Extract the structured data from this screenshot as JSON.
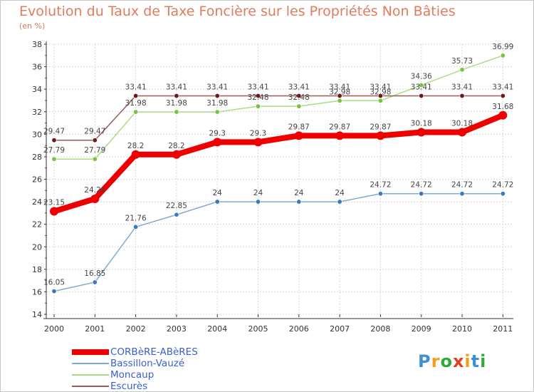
{
  "title": "Evolution du Taux de Taxe Foncière sur les Propriétés Non Bâties",
  "unit_label": "(en %)",
  "logo": {
    "text": "Proxiti",
    "letters": [
      {
        "ch": "P",
        "color": "#3f8fd8"
      },
      {
        "ch": "r",
        "color": "#f0a020"
      },
      {
        "ch": "o",
        "color": "#2faa3a"
      },
      {
        "ch": "x",
        "color": "#e04020"
      },
      {
        "ch": "i",
        "color": "#f0a020"
      },
      {
        "ch": "t",
        "color": "#3f8fd8"
      },
      {
        "ch": "i",
        "color": "#2faa3a"
      }
    ]
  },
  "chart_data": {
    "type": "line",
    "title": "Evolution du Taux de Taxe Foncière sur les Propriétés Non Bâties",
    "ylabel": "(en %)",
    "xlabel": "",
    "categories": [
      "2000",
      "2001",
      "2002",
      "2003",
      "2004",
      "2005",
      "2006",
      "2007",
      "2008",
      "2009",
      "2010",
      "2011"
    ],
    "ylim": [
      14,
      38
    ],
    "yticks": [
      14,
      16,
      18,
      20,
      22,
      24,
      26,
      28,
      30,
      32,
      34,
      36,
      38
    ],
    "grid": true,
    "legend_position": "bottom-left",
    "series": [
      {
        "name": "CORBèRE-ABèRES",
        "color": "#ee0000",
        "marker_color": "#ee0000",
        "weight": "thick",
        "values": [
          23.15,
          24.26,
          28.2,
          28.2,
          29.3,
          29.3,
          29.87,
          29.87,
          29.87,
          30.18,
          30.18,
          31.68
        ],
        "labels": [
          "23.15",
          "24.26",
          "28.2",
          "28.2",
          "29.3",
          "29.3",
          "29.87",
          "29.87",
          "29.87",
          "30.18",
          "30.18",
          "31.68"
        ]
      },
      {
        "name": "Bassillon-Vauzé",
        "color": "#7eaad4",
        "marker_color": "#3a78c0",
        "weight": "thin",
        "values": [
          16.05,
          16.85,
          21.76,
          22.85,
          24,
          24,
          24,
          24,
          24.72,
          24.72,
          24.72,
          24.72
        ],
        "labels": [
          "16.05",
          "16.85",
          "21.76",
          "22.85",
          "24",
          "24",
          "24",
          "24",
          "24.72",
          "24.72",
          "24.72",
          "24.72"
        ]
      },
      {
        "name": "Moncaup",
        "color": "#a8dc80",
        "marker_color": "#7cc242",
        "weight": "thin",
        "values": [
          27.79,
          27.79,
          31.98,
          31.98,
          31.98,
          32.48,
          32.48,
          32.98,
          32.98,
          34.36,
          35.73,
          36.99
        ],
        "labels": [
          "27.79",
          "27.79",
          "31.98",
          "31.98",
          "31.98",
          "32.48",
          "32.48",
          "32.98",
          "32.98",
          "34.36",
          "35.73",
          "36.99"
        ]
      },
      {
        "name": "Escurès",
        "color": "#9a5a5a",
        "marker_color": "#6a1a1a",
        "weight": "thin",
        "values": [
          29.47,
          29.47,
          33.41,
          33.41,
          33.41,
          33.41,
          33.41,
          33.41,
          33.41,
          33.41,
          33.41,
          33.41
        ],
        "labels": [
          "29.47",
          "29.47",
          "33.41",
          "33.41",
          "33.41",
          "33.41",
          "33.41",
          "33.41",
          "33.41",
          "33.41",
          "33.41",
          "33.41"
        ]
      }
    ]
  }
}
